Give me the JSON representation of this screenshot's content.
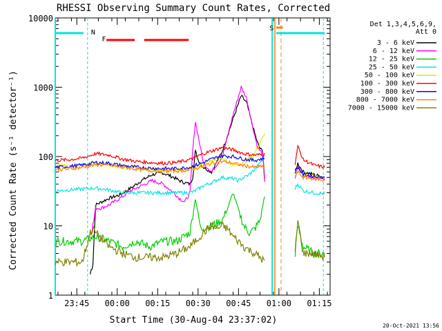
{
  "chart_data": {
    "type": "line",
    "title": "RHESSI Observing Summary Count Rates, Corrected",
    "xlabel": "Start Time (30-Aug-04 23:37:02)",
    "ylabel": "Corrected Count Rate (s⁻¹ detector⁻¹)",
    "yscale": "log",
    "ylim": [
      1,
      10000
    ],
    "xlim_minutes_from_start": [
      0,
      102
    ],
    "x_ticks": [
      {
        "label": "23:45",
        "t": 8
      },
      {
        "label": "00:00",
        "t": 23
      },
      {
        "label": "00:15",
        "t": 38
      },
      {
        "label": "00:30",
        "t": 53
      },
      {
        "label": "00:45",
        "t": 68
      },
      {
        "label": "01:00",
        "t": 83
      },
      {
        "label": "01:15",
        "t": 98
      }
    ],
    "y_ticks": [
      {
        "label": "1",
        "v": 1
      },
      {
        "label": "10",
        "v": 10
      },
      {
        "label": "100",
        "v": 100
      },
      {
        "label": "1000",
        "v": 1000
      },
      {
        "label": "10000",
        "v": 10000
      }
    ],
    "legend": {
      "header": [
        "Det 1,3,4,5,6,9,",
        "Att 0"
      ],
      "placement": "right"
    },
    "series": [
      {
        "name": "3 - 6 keV",
        "color": "#000000",
        "x": [
          13,
          14,
          15,
          17,
          20,
          24,
          28,
          32,
          36,
          40,
          44,
          46,
          48,
          50,
          51,
          52,
          53,
          55,
          58,
          62,
          66,
          69,
          71,
          73,
          75,
          76,
          77,
          78,
          89,
          90,
          92,
          96,
          100
        ],
        "y": [
          2,
          3,
          20,
          22,
          25,
          28,
          35,
          45,
          55,
          58,
          50,
          45,
          42,
          40,
          50,
          120,
          90,
          70,
          60,
          120,
          350,
          750,
          600,
          300,
          160,
          130,
          120,
          30,
          60,
          80,
          60,
          55,
          50
        ]
      },
      {
        "name": "6 - 12 keV",
        "color": "#ff00ff",
        "x": [
          13,
          14,
          15,
          17,
          20,
          24,
          28,
          32,
          36,
          40,
          44,
          46,
          48,
          50,
          51,
          52,
          53,
          55,
          58,
          62,
          66,
          69,
          71,
          73,
          75,
          76,
          77,
          78,
          89,
          90,
          92,
          96,
          100
        ],
        "y": [
          8,
          10,
          18,
          18,
          20,
          25,
          32,
          38,
          45,
          40,
          30,
          25,
          22,
          30,
          120,
          320,
          200,
          80,
          60,
          100,
          400,
          1000,
          700,
          300,
          140,
          120,
          110,
          25,
          50,
          70,
          55,
          50,
          48
        ]
      },
      {
        "name": "12 - 25 keV",
        "color": "#00cc00",
        "x": [
          0,
          10,
          15,
          20,
          25,
          30,
          35,
          40,
          45,
          50,
          52,
          54,
          58,
          62,
          64,
          66,
          68,
          70,
          72,
          74,
          76,
          77,
          78,
          89,
          90,
          92,
          96,
          100
        ],
        "y": [
          6,
          6,
          7,
          6,
          5,
          6,
          5,
          6,
          6,
          8,
          25,
          9,
          10,
          12,
          18,
          30,
          17,
          10,
          8,
          9,
          12,
          20,
          30,
          4,
          10,
          5,
          4,
          4
        ]
      },
      {
        "name": "25 - 50 keV",
        "color": "#00e5e5",
        "x": [
          0,
          10,
          15,
          20,
          25,
          30,
          35,
          40,
          45,
          50,
          52,
          55,
          58,
          62,
          66,
          68,
          70,
          72,
          74,
          76,
          77,
          78,
          89,
          90,
          92,
          96,
          100
        ],
        "y": [
          32,
          34,
          35,
          33,
          30,
          30,
          30,
          30,
          30,
          30,
          32,
          38,
          42,
          50,
          48,
          45,
          50,
          55,
          65,
          80,
          95,
          100,
          35,
          40,
          32,
          30,
          29
        ]
      },
      {
        "name": "50 - 100 keV",
        "color": "#e6e600",
        "x": [
          0,
          10,
          15,
          20,
          25,
          30,
          35,
          40,
          45,
          50,
          55,
          58,
          62,
          66,
          70,
          74,
          76,
          77,
          78,
          89,
          90,
          92,
          96,
          100
        ],
        "y": [
          72,
          76,
          78,
          75,
          70,
          68,
          66,
          65,
          64,
          66,
          75,
          90,
          95,
          75,
          80,
          110,
          160,
          200,
          210,
          60,
          70,
          55,
          52,
          50
        ]
      },
      {
        "name": "100 - 300 keV",
        "color": "#ff0000",
        "x": [
          0,
          5,
          10,
          15,
          20,
          25,
          30,
          35,
          40,
          45,
          50,
          55,
          58,
          62,
          66,
          70,
          74,
          78,
          89,
          90,
          92,
          96,
          100
        ],
        "y": [
          88,
          90,
          95,
          110,
          105,
          92,
          85,
          82,
          80,
          82,
          90,
          110,
          120,
          135,
          125,
          110,
          105,
          108,
          80,
          140,
          90,
          75,
          70
        ]
      },
      {
        "name": "300 - 800 keV",
        "color": "#0000ff",
        "x": [
          0,
          5,
          10,
          15,
          20,
          25,
          30,
          35,
          40,
          45,
          50,
          55,
          58,
          62,
          66,
          70,
          74,
          78,
          89,
          90,
          92,
          96,
          100
        ],
        "y": [
          70,
          72,
          75,
          82,
          80,
          74,
          70,
          68,
          67,
          67,
          70,
          82,
          92,
          102,
          100,
          92,
          88,
          95,
          60,
          70,
          55,
          52,
          50
        ]
      },
      {
        "name": "800 - 7000 keV",
        "color": "#ff8000",
        "x": [
          0,
          5,
          10,
          15,
          20,
          25,
          30,
          35,
          40,
          45,
          50,
          55,
          58,
          62,
          66,
          70,
          74,
          78,
          89,
          90,
          92,
          96,
          100
        ],
        "y": [
          65,
          66,
          70,
          76,
          75,
          70,
          66,
          63,
          62,
          62,
          64,
          72,
          80,
          85,
          80,
          74,
          70,
          72,
          52,
          60,
          50,
          48,
          45
        ]
      },
      {
        "name": "7000 - 15000 keV",
        "color": "#808000",
        "x": [
          0,
          10,
          13,
          14,
          15,
          20,
          25,
          30,
          35,
          40,
          45,
          50,
          55,
          58,
          60,
          62,
          64,
          66,
          68,
          70,
          74,
          76,
          78,
          89,
          90,
          92,
          96,
          100
        ],
        "y": [
          3,
          3,
          8,
          9,
          8,
          5,
          4,
          3.5,
          3.5,
          3.5,
          4,
          5,
          8,
          10,
          9,
          10,
          9,
          7,
          6,
          5,
          4,
          3.5,
          3,
          4,
          12,
          4,
          4,
          3.5
        ]
      }
    ],
    "markers": [
      {
        "label": "N",
        "t": 12
      },
      {
        "label": "S",
        "t": 84
      }
    ],
    "flare_flag_label": "F",
    "timestamp": "20-Oct-2021 13:56"
  }
}
